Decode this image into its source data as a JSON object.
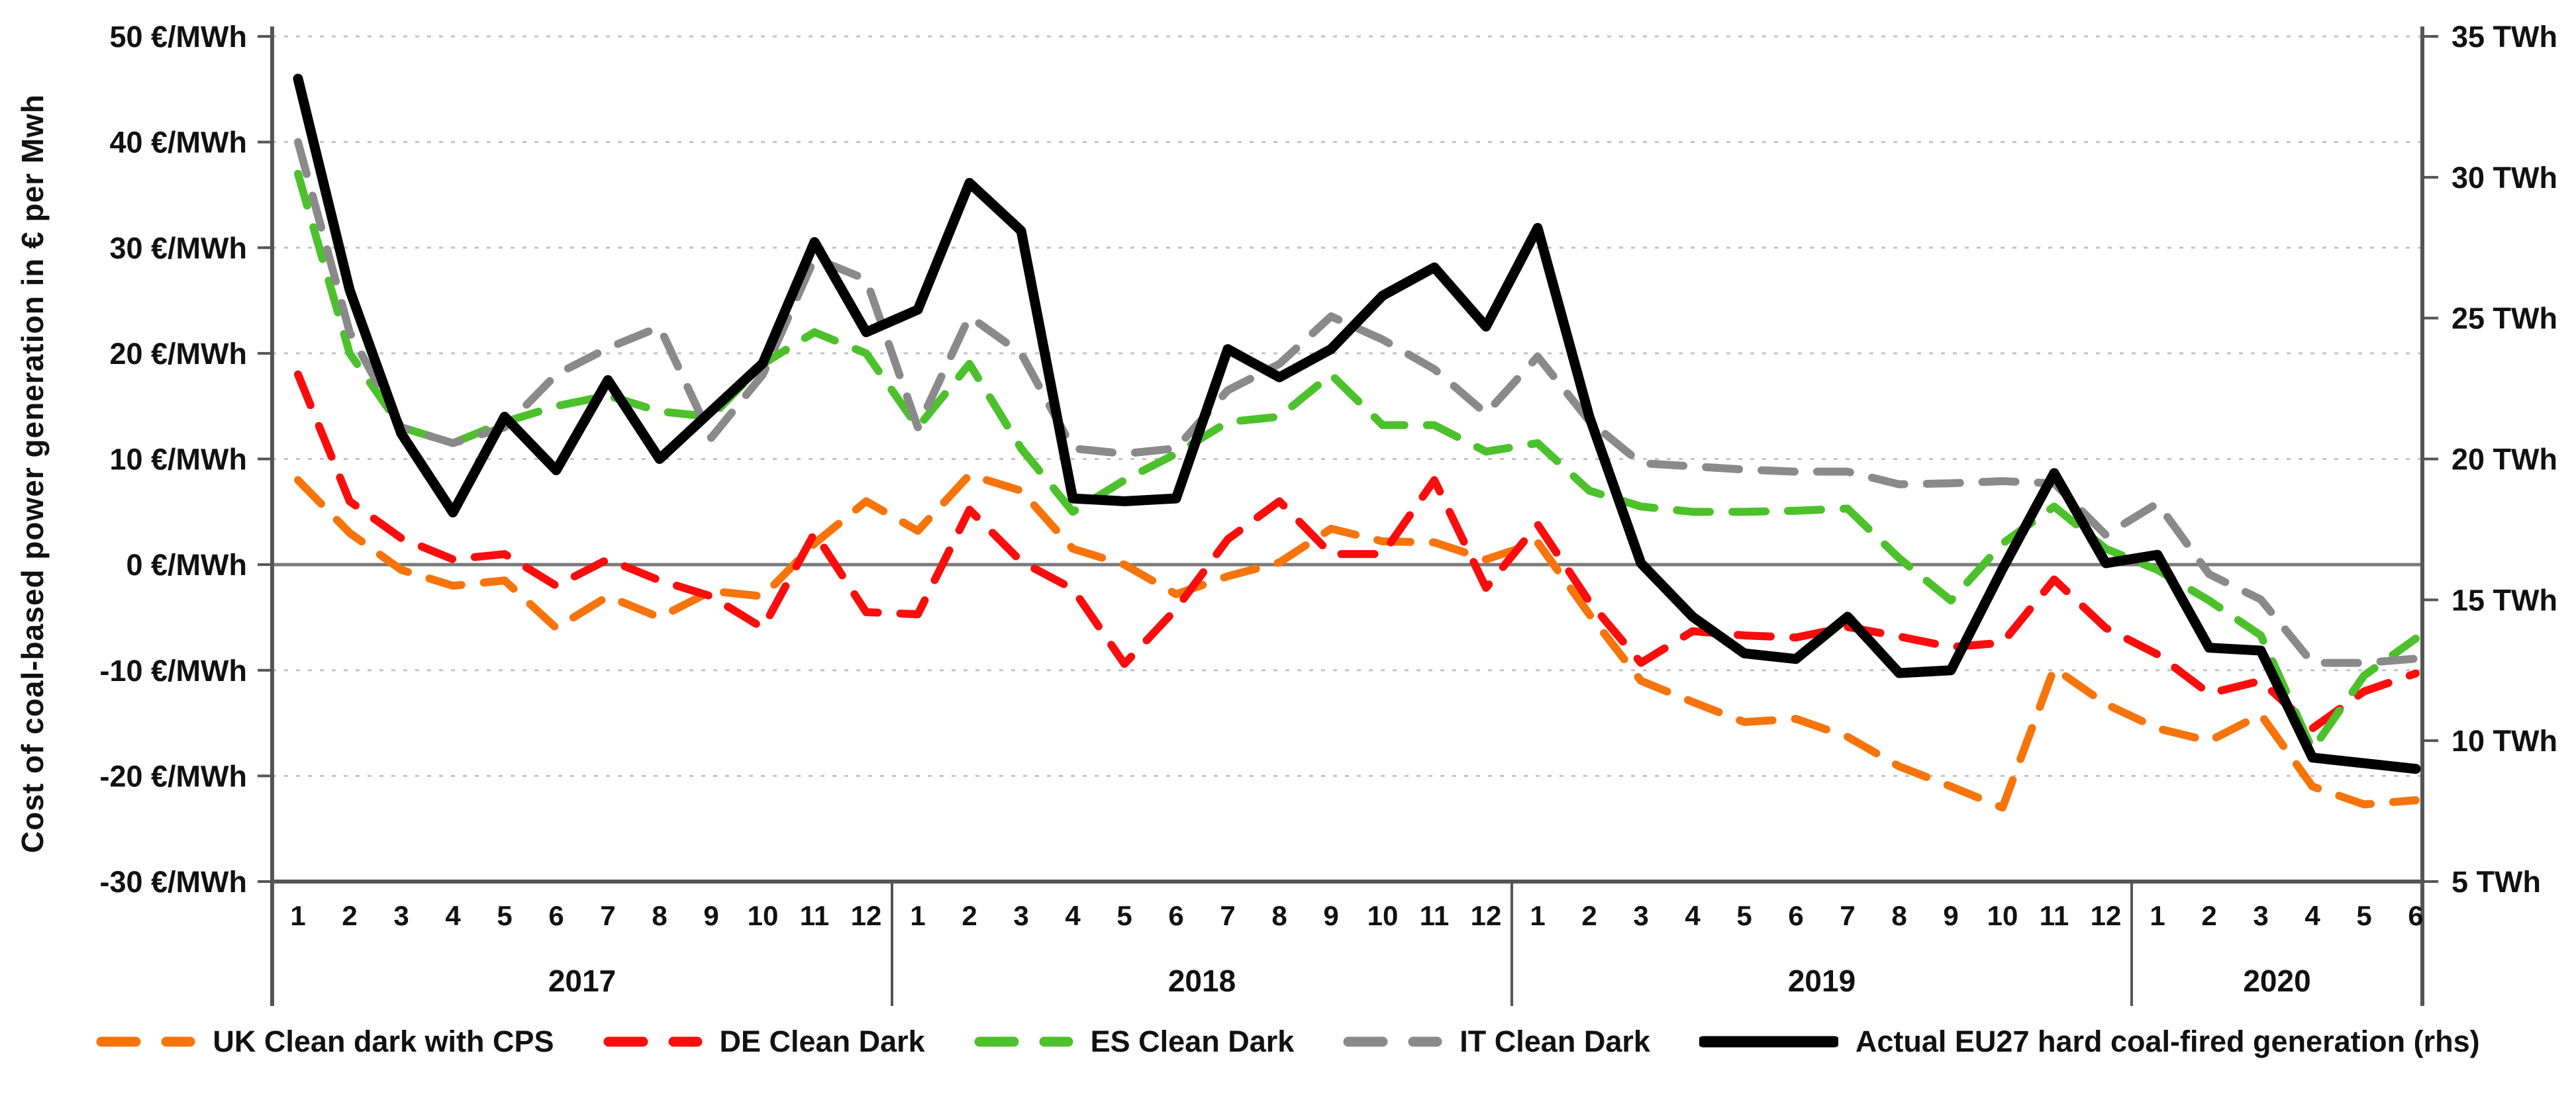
{
  "y_axis": {
    "title": "Cost of coal-based power generation in € per Mwh",
    "tick_labels": [
      "50 €/MWh",
      "40 €/MWh",
      "30 €/MWh",
      "20 €/MWh",
      "10 €/MWh",
      "0 €/MWh",
      "-10 €/MWh",
      "-20 €/MWh",
      "-30 €/MWh"
    ],
    "tick_values": [
      50,
      40,
      30,
      20,
      10,
      0,
      -10,
      -20,
      -30
    ]
  },
  "y_axis_right": {
    "tick_labels": [
      "35 TWh",
      "30 TWh",
      "25 TWh",
      "20 TWh",
      "15 TWh",
      "10 TWh",
      "5 TWh"
    ],
    "tick_values": [
      35,
      30,
      25,
      20,
      15,
      10,
      5
    ]
  },
  "x_axis": {
    "years": [
      {
        "label": "2017",
        "months": [
          "1",
          "2",
          "3",
          "4",
          "5",
          "6",
          "7",
          "8",
          "9",
          "10",
          "11",
          "12"
        ]
      },
      {
        "label": "2018",
        "months": [
          "1",
          "2",
          "3",
          "4",
          "5",
          "6",
          "7",
          "8",
          "9",
          "10",
          "11",
          "12"
        ]
      },
      {
        "label": "2019",
        "months": [
          "1",
          "2",
          "3",
          "4",
          "5",
          "6",
          "7",
          "8",
          "9",
          "10",
          "11",
          "12"
        ]
      },
      {
        "label": "2020",
        "months": [
          "1",
          "2",
          "3",
          "4",
          "5",
          "6"
        ]
      }
    ]
  },
  "chart_data": {
    "type": "line",
    "title": "",
    "xlabel": "",
    "ylabel_left": "Cost of coal-based power generation in € per Mwh",
    "ylabel_right": "TWh",
    "left_axis_range": [
      -30,
      50
    ],
    "right_axis_range": [
      5,
      35
    ],
    "grid": true,
    "legend_position": "bottom",
    "x": [
      "2017-1",
      "2017-2",
      "2017-3",
      "2017-4",
      "2017-5",
      "2017-6",
      "2017-7",
      "2017-8",
      "2017-9",
      "2017-10",
      "2017-11",
      "2017-12",
      "2018-1",
      "2018-2",
      "2018-3",
      "2018-4",
      "2018-5",
      "2018-6",
      "2018-7",
      "2018-8",
      "2018-9",
      "2018-10",
      "2018-11",
      "2018-12",
      "2019-1",
      "2019-2",
      "2019-3",
      "2019-4",
      "2019-5",
      "2019-6",
      "2019-7",
      "2019-8",
      "2019-9",
      "2019-10",
      "2019-11",
      "2019-12",
      "2020-1",
      "2020-2",
      "2020-3",
      "2020-4",
      "2020-5",
      "2020-6"
    ],
    "series": [
      {
        "name": "UK Clean dark with CPS",
        "color": "#f7740c",
        "style": "dashed",
        "axis": "left",
        "unit": "€/MWh",
        "values": [
          8,
          3,
          -0.5,
          -2,
          -1.5,
          -6,
          -3,
          -5,
          -2.5,
          -3,
          2,
          6,
          3.2,
          8.5,
          7,
          1.5,
          0,
          -2.8,
          -1.1,
          0.2,
          3.4,
          2.2,
          2.1,
          0.5,
          2.1,
          -4.7,
          -11,
          -13,
          -14.9,
          -14.6,
          -16.3,
          -19.1,
          -21,
          -23,
          -9.8,
          -13.2,
          -15.5,
          -16.7,
          -14.2,
          -21,
          -22.7,
          -22.3
        ]
      },
      {
        "name": "DE Clean Dark",
        "color": "#fc0d0d",
        "style": "dashed",
        "axis": "left",
        "unit": "€/MWh",
        "values": [
          18,
          6,
          2.5,
          0.5,
          1,
          -2,
          0.5,
          -1.5,
          -3,
          -6,
          3,
          -4.5,
          -4.7,
          5.2,
          0.3,
          -2.3,
          -9.4,
          -4.2,
          2.4,
          6,
          1,
          1,
          8,
          -2.2,
          3.8,
          -3.5,
          -9.3,
          -6.3,
          -6.7,
          -6.9,
          -5.9,
          -6.8,
          -7.8,
          -7.4,
          -1.4,
          -6,
          -8.5,
          -12.2,
          -11,
          -15.5,
          -12,
          -10.3
        ]
      },
      {
        "name": "ES Clean Dark",
        "color": "#4cc12c",
        "style": "dashed",
        "axis": "left",
        "unit": "€/MWh",
        "values": [
          37,
          20,
          13,
          11.5,
          13.5,
          15,
          16,
          14.5,
          14,
          19,
          22,
          20,
          13,
          19,
          11,
          5,
          8,
          10.5,
          13.5,
          14,
          18,
          13.2,
          13.2,
          10.7,
          11.5,
          7,
          5.5,
          5,
          5,
          5.1,
          5.3,
          0.6,
          -3.4,
          2,
          5.5,
          1.5,
          -0.5,
          -3.4,
          -6.7,
          -17.5,
          -10.5,
          -7
        ]
      },
      {
        "name": "IT Clean Dark",
        "color": "#8a8a8a",
        "style": "dashed",
        "axis": "left",
        "unit": "€/MWh",
        "values": [
          40,
          22,
          13,
          11.5,
          13,
          18,
          20.5,
          22.5,
          12,
          18,
          29,
          27,
          13,
          23.5,
          20,
          11,
          10.5,
          11,
          16.5,
          19,
          23.5,
          21.3,
          18.5,
          14.3,
          19.7,
          13.6,
          9.6,
          9.3,
          9,
          8.8,
          8.8,
          7.6,
          7.7,
          7.9,
          7.7,
          2.8,
          5.8,
          -0.9,
          -3.3,
          -9.3,
          -9.3,
          -8.9
        ]
      },
      {
        "name": "Actual EU27 hard coal-fired generation (rhs)",
        "color": "#000000",
        "style": "solid",
        "axis": "right",
        "unit": "TWh",
        "values": [
          33.5,
          26.0,
          20.9,
          18.1,
          21.5,
          19.6,
          22.8,
          20.0,
          21.7,
          23.4,
          27.7,
          24.5,
          25.3,
          29.8,
          28.1,
          18.6,
          18.5,
          18.6,
          23.9,
          22.9,
          23.9,
          25.8,
          26.8,
          24.7,
          28.2,
          21.5,
          16.3,
          14.4,
          13.1,
          12.9,
          14.4,
          12.4,
          12.5,
          16.1,
          19.5,
          16.3,
          16.6,
          13.3,
          13.2,
          9.4,
          9.2,
          9.0
        ]
      }
    ]
  },
  "colors": {
    "gridline": "#c3c3c3",
    "zero_line": "#7a7a7a",
    "axis_line": "#555555",
    "text": "#111111"
  }
}
